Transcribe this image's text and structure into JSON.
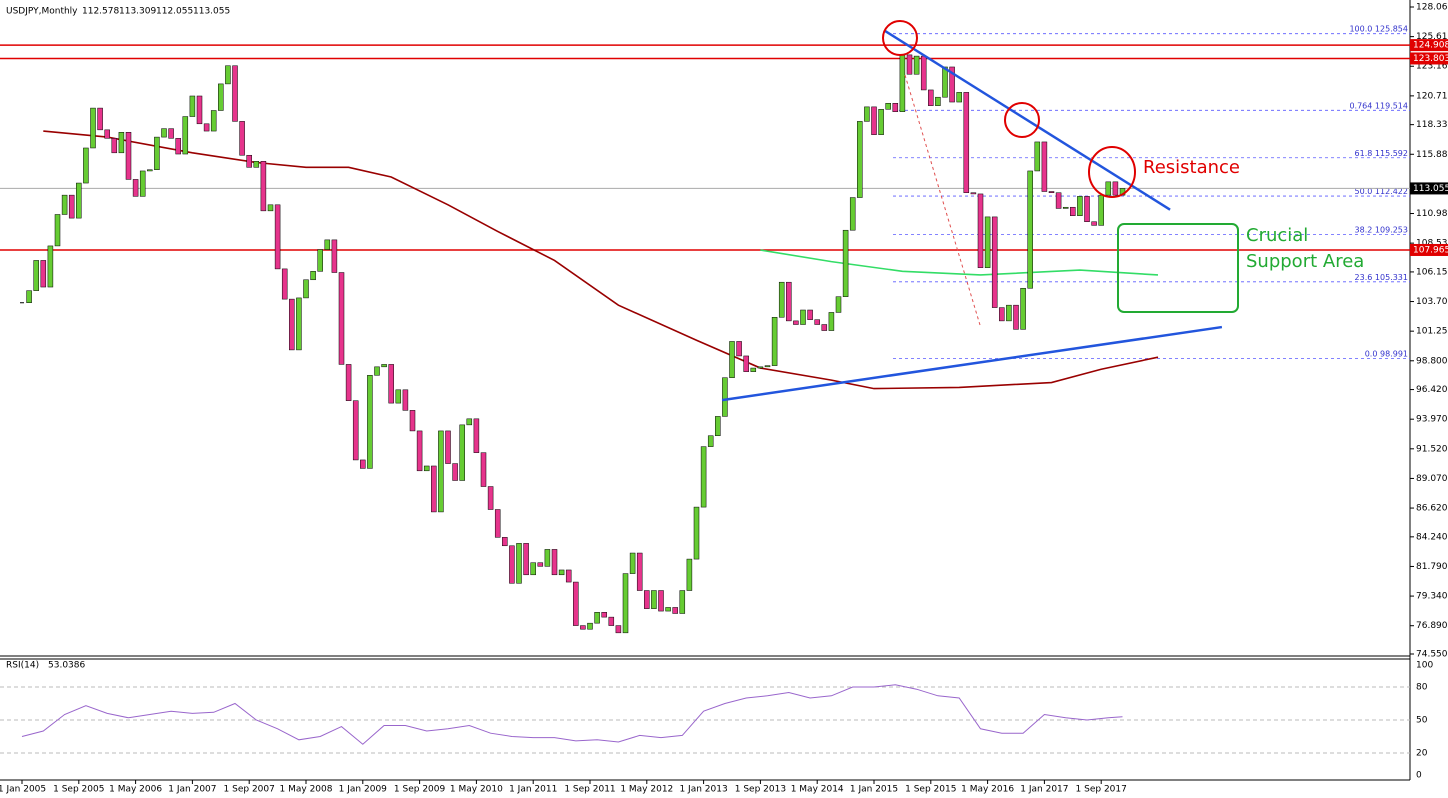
{
  "chart_data": {
    "type": "candlestick",
    "header": {
      "symbol": "USDJPY,Monthly",
      "ohlc": [
        112.578,
        113.309,
        112.055,
        113.055
      ]
    },
    "closes": [
      103.6,
      104.6,
      107.1,
      104.9,
      108.3,
      110.9,
      112.5,
      110.6,
      113.5,
      116.4,
      119.7,
      117.9,
      117.2,
      116.0,
      117.7,
      113.8,
      112.4,
      114.5,
      114.6,
      117.3,
      118.0,
      117.2,
      115.9,
      119.0,
      120.7,
      118.4,
      117.8,
      119.5,
      121.7,
      123.2,
      118.6,
      115.8,
      114.8,
      115.3,
      111.2,
      111.7,
      106.4,
      103.9,
      99.7,
      104.0,
      105.5,
      106.2,
      108.0,
      108.8,
      106.1,
      98.5,
      95.5,
      90.6,
      89.9,
      97.6,
      98.3,
      98.5,
      95.3,
      96.4,
      94.7,
      93.0,
      89.7,
      90.1,
      86.3,
      93.0,
      90.3,
      88.9,
      93.5,
      94.0,
      91.2,
      88.4,
      86.5,
      84.2,
      83.5,
      80.4,
      83.7,
      81.1,
      82.1,
      81.8,
      83.2,
      81.1,
      81.5,
      80.5,
      76.9,
      76.6,
      77.1,
      78.0,
      77.6,
      76.9,
      76.3,
      81.2,
      82.9,
      79.8,
      78.3,
      79.8,
      78.1,
      78.4,
      77.9,
      79.8,
      82.4,
      86.7,
      91.7,
      92.6,
      94.2,
      97.4,
      100.4,
      99.2,
      97.9,
      98.2,
      98.3,
      98.4,
      102.4,
      105.3,
      102.1,
      101.8,
      103.0,
      102.2,
      101.8,
      101.3,
      102.8,
      104.1,
      109.6,
      112.3,
      118.6,
      119.8,
      117.5,
      119.6,
      120.1,
      119.4,
      124.1,
      122.5,
      124.0,
      121.2,
      119.9,
      120.6,
      123.1,
      120.2,
      121.0,
      112.7,
      112.6,
      106.5,
      110.7,
      103.2,
      102.1,
      103.4,
      101.4,
      104.8,
      114.5,
      116.9,
      112.8,
      112.7,
      111.4,
      111.5,
      110.8,
      112.4,
      110.3,
      110.0,
      112.5,
      113.6,
      112.5,
      113.055
    ],
    "up_color": "#66cc33",
    "down_color": "#e6348c",
    "ylim": [
      74.55,
      128.06
    ],
    "yticks": [
      {
        "value": 128.06,
        "label": "128.060"
      },
      {
        "value": 125.61,
        "label": "125.610"
      },
      {
        "value": 123.16,
        "label": "123.160"
      },
      {
        "value": 120.71,
        "label": "120.710"
      },
      {
        "value": 118.33,
        "label": "118.330"
      },
      {
        "value": 115.88,
        "label": "115.880"
      },
      {
        "value": 110.98,
        "label": "110.980"
      },
      {
        "value": 108.53,
        "label": "108.530"
      },
      {
        "value": 106.15,
        "label": "106.150"
      },
      {
        "value": 103.7,
        "label": "103.700"
      },
      {
        "value": 101.25,
        "label": "101.250"
      },
      {
        "value": 98.8,
        "label": "98.800"
      },
      {
        "value": 96.42,
        "label": "96.420"
      },
      {
        "value": 93.97,
        "label": "93.970"
      },
      {
        "value": 91.52,
        "label": "91.520"
      },
      {
        "value": 89.07,
        "label": "89.070"
      },
      {
        "value": 86.62,
        "label": "86.620"
      },
      {
        "value": 84.24,
        "label": "84.240"
      },
      {
        "value": 81.79,
        "label": "81.790"
      },
      {
        "value": 79.34,
        "label": "79.340"
      },
      {
        "value": 76.89,
        "label": "76.890"
      },
      {
        "value": 74.55,
        "label": "74.550"
      }
    ],
    "xticks": [
      "1 Jan 2005",
      "1 Sep 2005",
      "1 May 2006",
      "1 Jan 2007",
      "1 Sep 2007",
      "1 May 2008",
      "1 Jan 2009",
      "1 Sep 2009",
      "1 May 2010",
      "1 Jan 2011",
      "1 Sep 2011",
      "1 May 2012",
      "1 Jan 2013",
      "1 Sep 2013",
      "1 May 2014",
      "1 Jan 2015",
      "1 Sep 2015",
      "1 May 2016",
      "1 Jan 2017",
      "1 Sep 2017"
    ],
    "levels": [
      {
        "value": 124.908,
        "color": "#e00000"
      },
      {
        "value": 123.803,
        "color": "#e00000"
      },
      {
        "value": 107.965,
        "color": "#e00000"
      },
      {
        "value": 113.055,
        "color": "#000000"
      }
    ],
    "fibonacci": [
      {
        "ratio": "100.0",
        "value": 125.854
      },
      {
        "ratio": "0.764",
        "value": 119.514
      },
      {
        "ratio": "61.8",
        "value": 115.592
      },
      {
        "ratio": "50.0",
        "value": 112.422
      },
      {
        "ratio": "38.2",
        "value": 109.253
      },
      {
        "ratio": "23.6",
        "value": 105.331
      },
      {
        "ratio": "0.0",
        "value": 98.991
      }
    ],
    "moving_averages": [
      {
        "color": "#990000",
        "x": [
          3,
          12,
          24,
          33,
          40,
          46,
          52,
          60,
          67,
          75,
          84,
          95,
          104,
          114,
          120,
          132,
          145,
          152,
          160
        ],
        "values": [
          117.8,
          117.3,
          116.0,
          115.2,
          114.8,
          114.8,
          114.0,
          111.7,
          109.5,
          107.1,
          103.4,
          100.5,
          98.2,
          97.2,
          96.5,
          96.6,
          97.0,
          98.1,
          99.1
        ]
      },
      {
        "color": "#33dd66",
        "x": [
          104,
          114,
          124,
          135,
          149,
          160
        ],
        "values": [
          107.96,
          107.0,
          106.2,
          105.9,
          106.3,
          105.9
        ]
      }
    ],
    "trendlines": [
      {
        "x": [
          121.5,
          161.7
        ],
        "values": [
          126.1,
          111.3
        ]
      },
      {
        "x": [
          98.6,
          169
        ],
        "values": [
          95.55,
          101.59
        ]
      }
    ],
    "annotations": [
      "Resistance",
      "Crucial",
      "Support Area"
    ],
    "rsi": {
      "name": "RSI(14)",
      "value": 53.0386,
      "color": "#9966cc",
      "ylim": [
        0,
        100
      ],
      "yticks": [
        0,
        20,
        50,
        80,
        100
      ],
      "x": [
        0,
        3,
        6,
        9,
        12,
        15,
        18,
        21,
        24,
        27,
        30,
        33,
        36,
        39,
        42,
        45,
        48,
        51,
        54,
        57,
        60,
        63,
        66,
        69,
        72,
        75,
        78,
        81,
        84,
        87,
        90,
        93,
        96,
        99,
        102,
        105,
        108,
        111,
        114,
        117,
        120,
        123,
        126,
        129,
        132,
        135,
        138,
        141,
        144,
        147,
        150,
        153,
        155
      ],
      "values": [
        35,
        40,
        55,
        63,
        56,
        52,
        55,
        58,
        56,
        57,
        65,
        50,
        42,
        32,
        35,
        44,
        28,
        45,
        45,
        40,
        42,
        45,
        38,
        35,
        34,
        34,
        31,
        32,
        30,
        36,
        34,
        36,
        58,
        65,
        70,
        72,
        75,
        70,
        72,
        80,
        80,
        82,
        78,
        72,
        70,
        42,
        38,
        38,
        55,
        52,
        50,
        52,
        53
      ]
    }
  }
}
